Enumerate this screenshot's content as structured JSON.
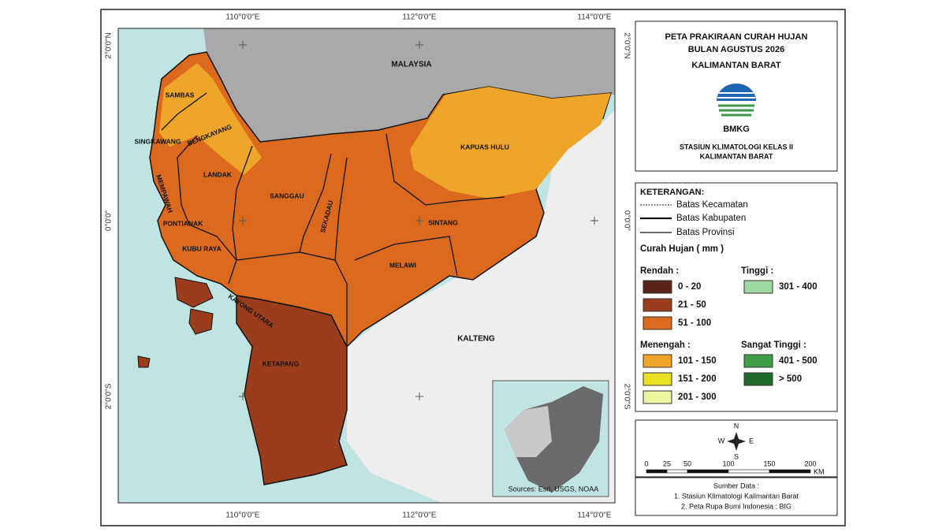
{
  "map": {
    "graticule": {
      "top": [
        "110°0'0\"E",
        "112°0'0\"E",
        "114°0'0\"E"
      ],
      "bottom": [
        "110°0'0\"E",
        "112°0'0\"E",
        "114°0'0\"E"
      ],
      "left": [
        "2°0'0\"N",
        "0°0'0\"",
        "2°0'0\"S"
      ],
      "right": [
        "2°0'0\"N",
        "0°0'0\"",
        "2°0'0\"S"
      ]
    },
    "regions": [
      "MALAYSIA",
      "SAMBAS",
      "BENGKAYANG",
      "SINGKAWANG",
      "LANDAK",
      "MEMPAWAH",
      "PONTIANAK",
      "KUBU RAYA",
      "SANGGAU",
      "SEKADAU",
      "KAPUAS HULU",
      "SINTANG",
      "MELAWI",
      "KAYONG UTARA",
      "KETAPANG",
      "KALTENG"
    ],
    "attribution": "Sources: Esri, USGS, NOAA"
  },
  "title": {
    "lines": [
      "PETA PRAKIRAAN CURAH HUJAN",
      "BULAN AGUSTUS 2026",
      "KALIMANTAN BARAT"
    ],
    "logo": "BMKG",
    "station": [
      "STASIUN KLIMATOLOGI KELAS II",
      "KALIMANTAN BARAT"
    ]
  },
  "legend": {
    "heading": "KETERANGAN:",
    "boundaries": [
      "Batas Kecamatan",
      "Batas Kabupaten",
      "Batas Provinsi"
    ],
    "subtitle": "Curah Hujan ( mm )",
    "groups": [
      {
        "name": "Rendah :",
        "classes": [
          {
            "label": "0 - 20",
            "color": "#5a2418"
          },
          {
            "label": "21 - 50",
            "color": "#9a3d1c"
          },
          {
            "label": "51 - 100",
            "color": "#db6a1e"
          }
        ]
      },
      {
        "name": "Menengah :",
        "classes": [
          {
            "label": "101 - 150",
            "color": "#eea62a"
          },
          {
            "label": "151 - 200",
            "color": "#e8e020"
          },
          {
            "label": "201 - 300",
            "color": "#eef5a0"
          }
        ]
      },
      {
        "name": "Tinggi :",
        "classes": [
          {
            "label": "301 - 400",
            "color": "#9bd9a0"
          }
        ]
      },
      {
        "name": "Sangat Tinggi :",
        "classes": [
          {
            "label": "401 - 500",
            "color": "#3f9e48"
          },
          {
            "label": "> 500",
            "color": "#1f6a2a"
          }
        ]
      }
    ]
  },
  "compass": [
    "N",
    "S",
    "E",
    "W"
  ],
  "scale": {
    "ticks": [
      0,
      25,
      50,
      100,
      150,
      200
    ],
    "unit": "KM"
  },
  "source": {
    "heading": "Sumber Data :",
    "items": [
      "1. Stasiun Klimatologi Kalimantan Barat",
      "2. Peta Rupa Bumi Indonesia : BIG"
    ]
  }
}
